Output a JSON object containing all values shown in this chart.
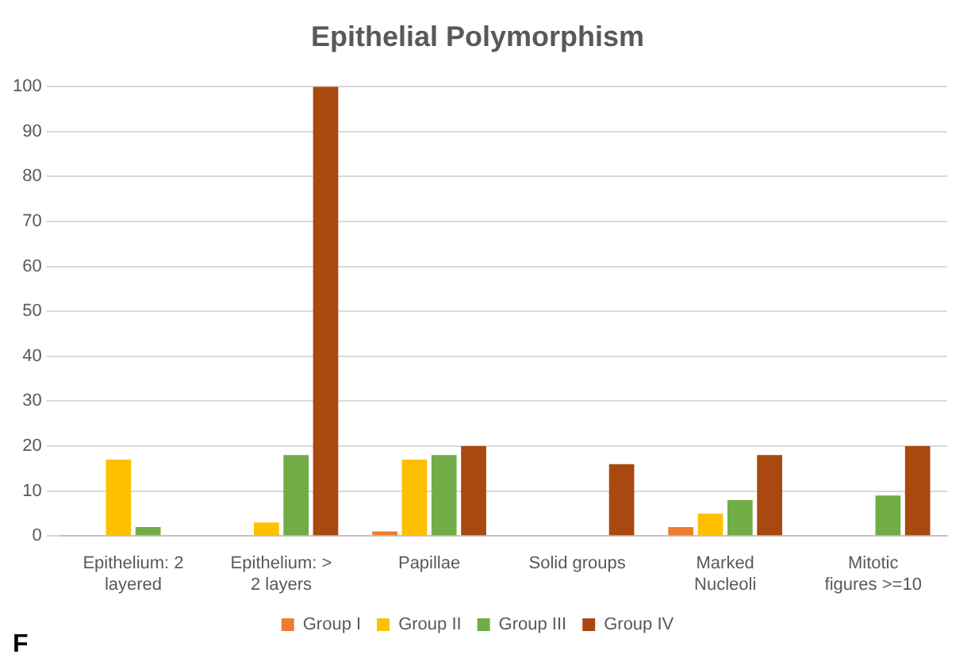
{
  "chart_data": {
    "type": "bar",
    "title": "Epithelial Polymorphism",
    "categories": [
      "Epithelium: 2 layered",
      "Epithelium: > 2 layers",
      "Papillae",
      "Solid groups",
      "Marked Nucleoli",
      "Mitotic figures >=10"
    ],
    "series": [
      {
        "name": "Group I",
        "color": "#ed7d31",
        "values": [
          0,
          0,
          1,
          0,
          2,
          0
        ]
      },
      {
        "name": "Group II",
        "color": "#ffc000",
        "values": [
          17,
          3,
          17,
          0,
          5,
          0
        ]
      },
      {
        "name": "Group III",
        "color": "#70ad47",
        "values": [
          2,
          18,
          18,
          0,
          8,
          9
        ]
      },
      {
        "name": "Group IV",
        "color": "#a9480f",
        "values": [
          0,
          100,
          20,
          16,
          18,
          20
        ]
      }
    ],
    "ylim": [
      0,
      100
    ],
    "yticks": [
      0,
      10,
      20,
      30,
      40,
      50,
      60,
      70,
      80,
      90,
      100
    ],
    "grid": "y",
    "legend": "bottom",
    "annotations": [
      "F"
    ]
  }
}
